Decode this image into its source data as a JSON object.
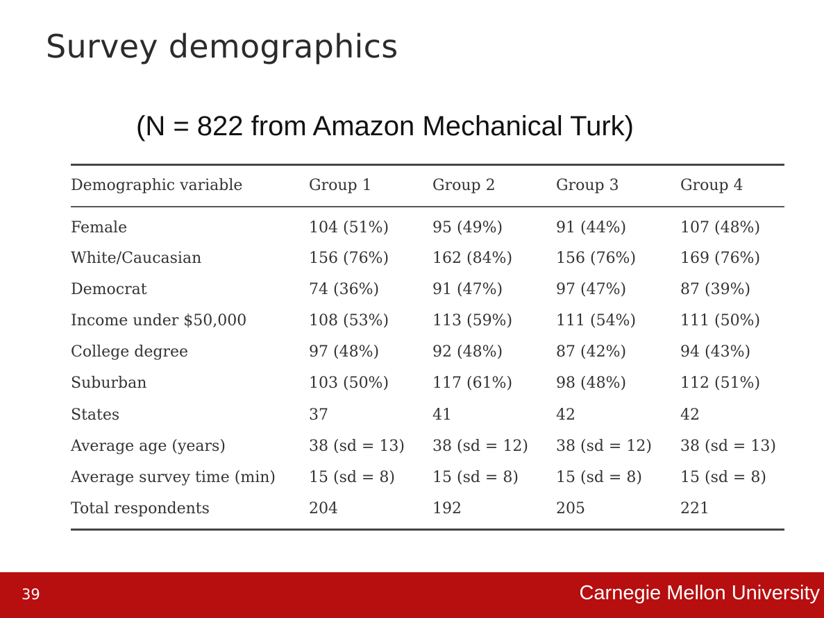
{
  "slide": {
    "title": "Survey demographics",
    "subtitle": "(N = 822 from Amazon Mechanical Turk)",
    "page_number": "39",
    "footer_brand": "Carnegie Mellon University"
  },
  "table": {
    "headers": [
      "Demographic variable",
      "Group 1",
      "Group 2",
      "Group 3",
      "Group 4"
    ],
    "rows": [
      [
        "Female",
        "104 (51%)",
        "95 (49%)",
        "91 (44%)",
        "107 (48%)"
      ],
      [
        "White/Caucasian",
        "156 (76%)",
        "162 (84%)",
        "156 (76%)",
        "169 (76%)"
      ],
      [
        "Democrat",
        "74 (36%)",
        "91 (47%)",
        "97 (47%)",
        "87 (39%)"
      ],
      [
        "Income under $50,000",
        "108 (53%)",
        "113 (59%)",
        "111 (54%)",
        "111 (50%)"
      ],
      [
        "College degree",
        "97 (48%)",
        "92 (48%)",
        "87 (42%)",
        "94 (43%)"
      ],
      [
        "Suburban",
        "103 (50%)",
        "117 (61%)",
        "98 (48%)",
        "112 (51%)"
      ],
      [
        "States",
        "37",
        "41",
        "42",
        "42"
      ],
      [
        "Average age (years)",
        "38 (sd = 13)",
        "38 (sd = 12)",
        "38 (sd = 12)",
        "38 (sd = 13)"
      ],
      [
        "Average survey time (min)",
        "15 (sd = 8)",
        "15 (sd = 8)",
        "15 (sd = 8)",
        "15 (sd = 8)"
      ],
      [
        "Total respondents",
        "204",
        "192",
        "205",
        "221"
      ]
    ]
  },
  "colors": {
    "footer_bg": "#b70e0f",
    "footer_text": "#ffffff"
  }
}
